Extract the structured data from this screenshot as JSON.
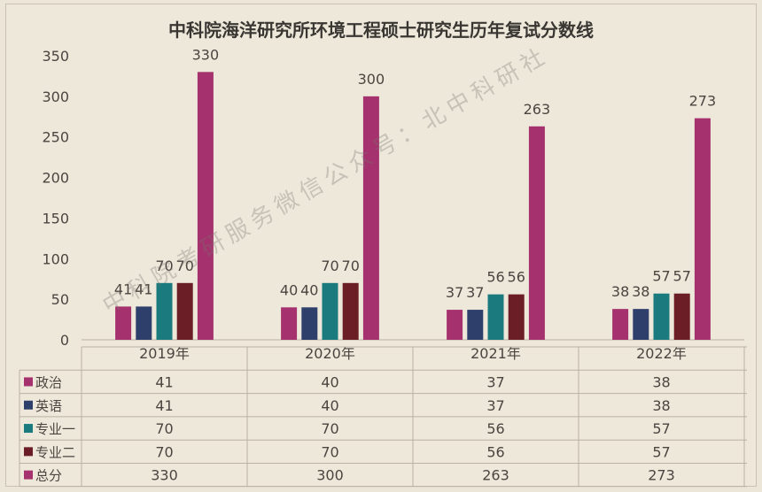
{
  "chart_data": {
    "type": "bar",
    "title": "中科院海洋研究所环境工程硕士研究生历年复试分数线",
    "categories": [
      "2019年",
      "2020年",
      "2021年",
      "2022年"
    ],
    "ylim": [
      0,
      350
    ],
    "yticks": [
      0,
      50,
      100,
      150,
      200,
      250,
      300,
      350
    ],
    "series": [
      {
        "name": "政治",
        "color": "#a5326e",
        "values": [
          41,
          40,
          37,
          38
        ]
      },
      {
        "name": "英语",
        "color": "#2f3f6b",
        "values": [
          41,
          40,
          37,
          38
        ]
      },
      {
        "name": "专业一",
        "color": "#1a7a7e",
        "values": [
          70,
          70,
          56,
          57
        ]
      },
      {
        "name": "专业二",
        "color": "#6b1e25",
        "values": [
          70,
          70,
          56,
          57
        ]
      },
      {
        "name": "总分",
        "color": "#a5326e",
        "values": [
          330,
          300,
          263,
          273
        ]
      }
    ],
    "legend": "data-table-below",
    "grid": false
  },
  "watermark": "中科院考研服务微信公众号：北中科研社"
}
